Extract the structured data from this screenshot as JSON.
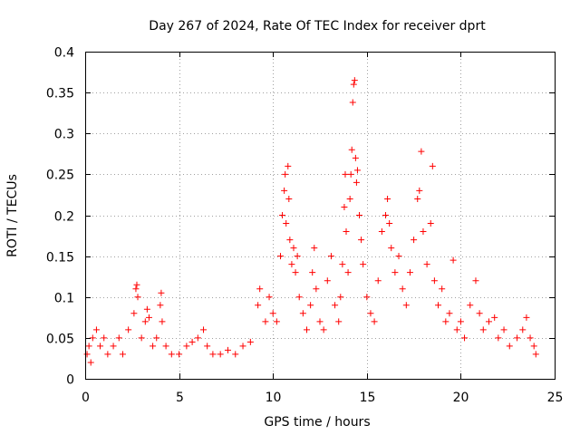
{
  "chart_data": {
    "type": "scatter",
    "title": "Day 267 of 2024, Rate Of TEC Index for receiver dprt",
    "xlabel": "GPS time / hours",
    "ylabel": "ROTI / TECUs",
    "xlim": [
      0,
      25
    ],
    "ylim": [
      0,
      0.4
    ],
    "xticks": [
      0,
      5,
      10,
      15,
      20,
      25
    ],
    "yticks": [
      0,
      0.05,
      0.1,
      0.15,
      0.2,
      0.25,
      0.3,
      0.35,
      0.4
    ],
    "grid": true,
    "marker": "+",
    "color": "#ff0000",
    "series": [
      {
        "name": "ROTI",
        "points": [
          [
            0.1,
            0.03
          ],
          [
            0.2,
            0.04
          ],
          [
            0.3,
            0.02
          ],
          [
            0.4,
            0.05
          ],
          [
            0.6,
            0.06
          ],
          [
            0.8,
            0.04
          ],
          [
            1.0,
            0.05
          ],
          [
            1.2,
            0.03
          ],
          [
            1.5,
            0.04
          ],
          [
            1.8,
            0.05
          ],
          [
            2.0,
            0.03
          ],
          [
            2.3,
            0.06
          ],
          [
            2.6,
            0.08
          ],
          [
            2.7,
            0.11
          ],
          [
            2.75,
            0.115
          ],
          [
            2.8,
            0.1
          ],
          [
            3.0,
            0.05
          ],
          [
            3.2,
            0.07
          ],
          [
            3.3,
            0.085
          ],
          [
            3.4,
            0.075
          ],
          [
            3.6,
            0.04
          ],
          [
            3.8,
            0.05
          ],
          [
            4.0,
            0.09
          ],
          [
            4.05,
            0.105
          ],
          [
            4.1,
            0.07
          ],
          [
            4.3,
            0.04
          ],
          [
            4.6,
            0.03
          ],
          [
            5.0,
            0.03
          ],
          [
            5.4,
            0.04
          ],
          [
            5.7,
            0.045
          ],
          [
            6.0,
            0.05
          ],
          [
            6.3,
            0.06
          ],
          [
            6.5,
            0.04
          ],
          [
            6.8,
            0.03
          ],
          [
            7.2,
            0.03
          ],
          [
            7.6,
            0.035
          ],
          [
            8.0,
            0.03
          ],
          [
            8.4,
            0.04
          ],
          [
            8.8,
            0.045
          ],
          [
            9.2,
            0.09
          ],
          [
            9.3,
            0.11
          ],
          [
            9.6,
            0.07
          ],
          [
            9.8,
            0.1
          ],
          [
            10.0,
            0.08
          ],
          [
            10.2,
            0.07
          ],
          [
            10.4,
            0.15
          ],
          [
            10.5,
            0.2
          ],
          [
            10.6,
            0.23
          ],
          [
            10.65,
            0.25
          ],
          [
            10.7,
            0.19
          ],
          [
            10.8,
            0.26
          ],
          [
            10.85,
            0.22
          ],
          [
            10.9,
            0.17
          ],
          [
            11.0,
            0.14
          ],
          [
            11.1,
            0.16
          ],
          [
            11.2,
            0.13
          ],
          [
            11.3,
            0.15
          ],
          [
            11.4,
            0.1
          ],
          [
            11.6,
            0.08
          ],
          [
            11.8,
            0.06
          ],
          [
            12.0,
            0.09
          ],
          [
            12.1,
            0.13
          ],
          [
            12.2,
            0.16
          ],
          [
            12.3,
            0.11
          ],
          [
            12.5,
            0.07
          ],
          [
            12.7,
            0.06
          ],
          [
            12.9,
            0.12
          ],
          [
            13.1,
            0.15
          ],
          [
            13.3,
            0.09
          ],
          [
            13.5,
            0.07
          ],
          [
            13.6,
            0.1
          ],
          [
            13.7,
            0.14
          ],
          [
            13.8,
            0.21
          ],
          [
            13.85,
            0.25
          ],
          [
            13.9,
            0.18
          ],
          [
            14.0,
            0.13
          ],
          [
            14.1,
            0.22
          ],
          [
            14.15,
            0.25
          ],
          [
            14.2,
            0.28
          ],
          [
            14.25,
            0.338
          ],
          [
            14.3,
            0.36
          ],
          [
            14.35,
            0.365
          ],
          [
            14.4,
            0.27
          ],
          [
            14.45,
            0.24
          ],
          [
            14.5,
            0.255
          ],
          [
            14.6,
            0.2
          ],
          [
            14.7,
            0.17
          ],
          [
            14.8,
            0.14
          ],
          [
            15.0,
            0.1
          ],
          [
            15.2,
            0.08
          ],
          [
            15.4,
            0.07
          ],
          [
            15.6,
            0.12
          ],
          [
            15.8,
            0.18
          ],
          [
            16.0,
            0.2
          ],
          [
            16.1,
            0.22
          ],
          [
            16.2,
            0.19
          ],
          [
            16.3,
            0.16
          ],
          [
            16.5,
            0.13
          ],
          [
            16.7,
            0.15
          ],
          [
            16.9,
            0.11
          ],
          [
            17.1,
            0.09
          ],
          [
            17.3,
            0.13
          ],
          [
            17.5,
            0.17
          ],
          [
            17.7,
            0.22
          ],
          [
            17.8,
            0.23
          ],
          [
            17.9,
            0.278
          ],
          [
            18.0,
            0.18
          ],
          [
            18.2,
            0.14
          ],
          [
            18.4,
            0.19
          ],
          [
            18.5,
            0.26
          ],
          [
            18.6,
            0.12
          ],
          [
            18.8,
            0.09
          ],
          [
            19.0,
            0.11
          ],
          [
            19.2,
            0.07
          ],
          [
            19.4,
            0.08
          ],
          [
            19.6,
            0.145
          ],
          [
            19.8,
            0.06
          ],
          [
            20.0,
            0.07
          ],
          [
            20.2,
            0.05
          ],
          [
            20.5,
            0.09
          ],
          [
            20.8,
            0.12
          ],
          [
            21.0,
            0.08
          ],
          [
            21.2,
            0.06
          ],
          [
            21.5,
            0.07
          ],
          [
            21.8,
            0.075
          ],
          [
            22.0,
            0.05
          ],
          [
            22.3,
            0.06
          ],
          [
            22.6,
            0.04
          ],
          [
            23.0,
            0.05
          ],
          [
            23.3,
            0.06
          ],
          [
            23.5,
            0.075
          ],
          [
            23.7,
            0.05
          ],
          [
            23.9,
            0.04
          ],
          [
            24.0,
            0.03
          ]
        ]
      }
    ]
  }
}
